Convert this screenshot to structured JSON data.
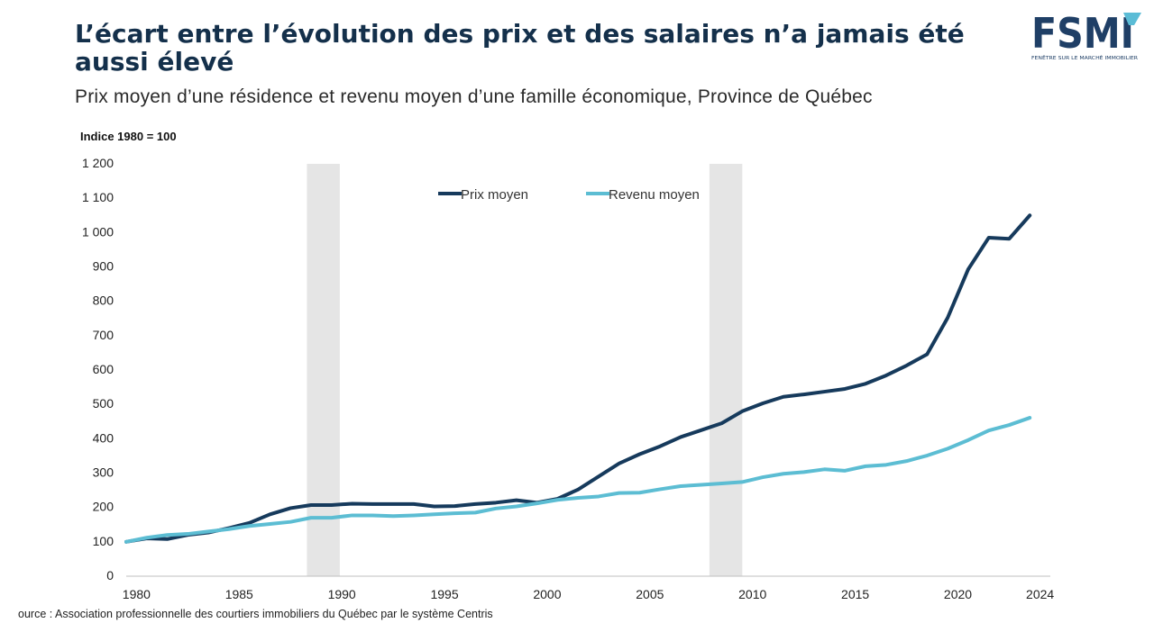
{
  "header": {
    "title": "L’écart entre l’évolution des prix et des salaires n’a jamais été aussi élevé",
    "subtitle": "Prix moyen d’une résidence et revenu moyen d’une famille économique, Province de Québec"
  },
  "logo": {
    "text": "FSMI",
    "tagline": "FENÊTRE SUR LE MARCHÉ IMMOBILIER",
    "color": "#1f3f66",
    "accent": "#5bbcd6"
  },
  "source": "ource : Association professionnelle des courtiers immobiliers du Québec par le système Centris",
  "chart_data": {
    "type": "line",
    "ylabel": "Indice 1980 = 100",
    "ylim": [
      0,
      1200
    ],
    "yticks": [
      0,
      100,
      200,
      300,
      400,
      500,
      600,
      700,
      800,
      900,
      1000,
      1100,
      1200
    ],
    "ytick_labels": [
      "0",
      "100",
      "200",
      "300",
      "400",
      "500",
      "600",
      "700",
      "800",
      "900",
      "1 000",
      "1 100",
      "1 200"
    ],
    "xlim": [
      1979.5,
      2024.5
    ],
    "xticks": [
      1980,
      1985,
      1990,
      1995,
      2000,
      2005,
      2010,
      2015,
      2020,
      2024
    ],
    "x": [
      1979.5,
      1980.5,
      1981.5,
      1982.5,
      1983.5,
      1984.5,
      1985.5,
      1986.5,
      1987.5,
      1988.5,
      1989.5,
      1990.5,
      1991.5,
      1992.5,
      1993.5,
      1994.5,
      1995.5,
      1996.5,
      1997.5,
      1998.5,
      1999.5,
      2000.5,
      2001.5,
      2002.5,
      2003.5,
      2004.5,
      2005.5,
      2006.5,
      2007.5,
      2008.5,
      2009.5,
      2010.5,
      2011.5,
      2012.5,
      2013.5,
      2014.5,
      2015.5,
      2016.5,
      2017.5,
      2018.5,
      2019.5,
      2020.5,
      2021.5,
      2022.5,
      2023.5
    ],
    "series": [
      {
        "name": "Prix moyen",
        "color": "#163a5c",
        "values": [
          100,
          110,
          108,
          120,
          127,
          140,
          155,
          180,
          198,
          207,
          207,
          211,
          210,
          210,
          210,
          203,
          204,
          210,
          214,
          221,
          214,
          225,
          252,
          290,
          328,
          355,
          378,
          405,
          425,
          445,
          480,
          503,
          522,
          529,
          537,
          545,
          560,
          584,
          613,
          646,
          752,
          893,
          985,
          982,
          1050
        ]
      },
      {
        "name": "Revenu moyen",
        "color": "#5cbdd3",
        "values": [
          100,
          112,
          120,
          123,
          130,
          137,
          146,
          152,
          158,
          170,
          170,
          177,
          177,
          175,
          177,
          180,
          183,
          185,
          197,
          203,
          212,
          222,
          228,
          232,
          242,
          243,
          253,
          262,
          266,
          270,
          274,
          288,
          298,
          303,
          311,
          307,
          320,
          324,
          335,
          351,
          371,
          396,
          424,
          440,
          461
        ]
      }
    ],
    "shaded_periods": [
      [
        1988.3,
        1989.9
      ],
      [
        2007.9,
        2009.5
      ]
    ],
    "shade_color": "#e5e5e5",
    "legend": "top-center",
    "grid": false
  }
}
